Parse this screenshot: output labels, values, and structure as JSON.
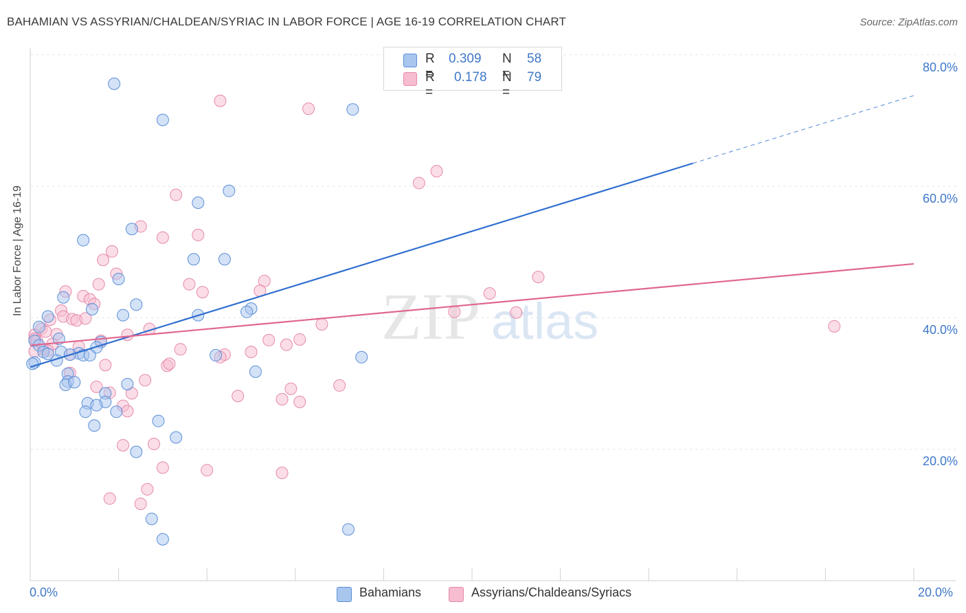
{
  "title": "BAHAMIAN VS ASSYRIAN/CHALDEAN/SYRIAC IN LABOR FORCE | AGE 16-19 CORRELATION CHART",
  "source": "Source: ZipAtlas.com",
  "watermark": {
    "zip": "ZIP",
    "atlas": "atlas"
  },
  "legend_top": {
    "r_label": "R =",
    "n_label": "N =",
    "series": [
      {
        "r": "0.309",
        "n": "58"
      },
      {
        "r": "0.178",
        "n": "79"
      }
    ]
  },
  "legend_bottom": [
    "Bahamians",
    "Assyrians/Chaldeans/Syriacs"
  ],
  "x_tick_left": "0.0%",
  "x_tick_right": "20.0%",
  "y_ticks": [
    "80.0%",
    "60.0%",
    "40.0%",
    "20.0%"
  ],
  "colors": {
    "blue_fill": "#a9c6ef",
    "blue_stroke": "#5b8fd6",
    "blue_line": "#2f6fcf",
    "pink_fill": "#f7bcd0",
    "pink_stroke": "#e58aaa",
    "pink_line": "#e0668f",
    "tick_text": "#3f78c8"
  },
  "chart_data": {
    "type": "scatter",
    "ylabel": "In Labor Force | Age 16-19",
    "xlim": [
      0,
      20
    ],
    "ylim": [
      0,
      82
    ],
    "grid": true,
    "series": [
      {
        "name": "Bahamians",
        "r": 0.309,
        "n": 58,
        "trend": {
          "x0": 0.0,
          "y0": 32.5,
          "x1": 15.0,
          "y1": 63.5,
          "dash_to_x": 20.0,
          "dash_to_y": 73.8
        },
        "points": [
          [
            1.9,
            75.6
          ],
          [
            3.0,
            70.1
          ],
          [
            7.3,
            71.7
          ],
          [
            4.5,
            59.3
          ],
          [
            3.8,
            57.5
          ],
          [
            2.3,
            53.5
          ],
          [
            1.2,
            51.8
          ],
          [
            3.7,
            48.9
          ],
          [
            4.4,
            48.9
          ],
          [
            2.0,
            45.9
          ],
          [
            0.75,
            43.1
          ],
          [
            2.4,
            42.0
          ],
          [
            1.4,
            41.3
          ],
          [
            5.0,
            41.4
          ],
          [
            2.1,
            40.4
          ],
          [
            3.8,
            40.4
          ],
          [
            4.9,
            40.9
          ],
          [
            0.4,
            40.2
          ],
          [
            0.2,
            38.6
          ],
          [
            0.65,
            36.8
          ],
          [
            0.1,
            36.5
          ],
          [
            0.2,
            35.8
          ],
          [
            1.6,
            36.3
          ],
          [
            1.5,
            35.5
          ],
          [
            0.3,
            34.8
          ],
          [
            0.4,
            34.5
          ],
          [
            0.7,
            34.8
          ],
          [
            1.1,
            34.6
          ],
          [
            1.2,
            34.3
          ],
          [
            0.9,
            34.4
          ],
          [
            1.35,
            34.3
          ],
          [
            0.6,
            33.5
          ],
          [
            0.1,
            33.2
          ],
          [
            0.05,
            33.0
          ],
          [
            4.2,
            34.3
          ],
          [
            7.5,
            34.0
          ],
          [
            5.1,
            31.8
          ],
          [
            0.85,
            31.5
          ],
          [
            0.85,
            30.3
          ],
          [
            0.8,
            29.8
          ],
          [
            1.0,
            30.2
          ],
          [
            2.2,
            29.9
          ],
          [
            1.7,
            28.5
          ],
          [
            1.3,
            27.0
          ],
          [
            1.7,
            27.2
          ],
          [
            1.5,
            26.7
          ],
          [
            1.25,
            25.7
          ],
          [
            1.95,
            25.7
          ],
          [
            2.9,
            24.3
          ],
          [
            1.45,
            23.6
          ],
          [
            3.3,
            21.8
          ],
          [
            2.4,
            19.6
          ],
          [
            2.75,
            9.4
          ],
          [
            3.0,
            6.3
          ],
          [
            7.2,
            7.8
          ]
        ]
      },
      {
        "name": "Assyrians/Chaldeans/Syriacs",
        "r": 0.178,
        "n": 79,
        "trend": {
          "x0": 0.0,
          "y0": 35.8,
          "x1": 20.0,
          "y1": 48.2
        },
        "points": [
          [
            4.3,
            73.0
          ],
          [
            6.3,
            71.8
          ],
          [
            9.2,
            62.3
          ],
          [
            8.8,
            60.5
          ],
          [
            3.3,
            58.7
          ],
          [
            2.5,
            53.9
          ],
          [
            3.0,
            52.2
          ],
          [
            3.8,
            52.6
          ],
          [
            1.85,
            50.1
          ],
          [
            1.65,
            48.8
          ],
          [
            11.5,
            46.2
          ],
          [
            1.95,
            46.7
          ],
          [
            3.6,
            45.1
          ],
          [
            1.55,
            45.1
          ],
          [
            5.3,
            45.6
          ],
          [
            5.2,
            44.1
          ],
          [
            0.8,
            44.0
          ],
          [
            3.9,
            43.9
          ],
          [
            10.4,
            43.7
          ],
          [
            1.2,
            43.3
          ],
          [
            1.35,
            42.8
          ],
          [
            1.45,
            42.1
          ],
          [
            0.7,
            41.1
          ],
          [
            9.6,
            40.9
          ],
          [
            11.0,
            40.8
          ],
          [
            0.75,
            40.2
          ],
          [
            0.95,
            39.8
          ],
          [
            1.05,
            39.6
          ],
          [
            1.25,
            39.9
          ],
          [
            0.45,
            39.7
          ],
          [
            6.6,
            39.0
          ],
          [
            18.2,
            38.7
          ],
          [
            0.25,
            38.3
          ],
          [
            0.35,
            37.9
          ],
          [
            0.1,
            37.4
          ],
          [
            0.6,
            37.5
          ],
          [
            2.2,
            37.4
          ],
          [
            2.7,
            38.3
          ],
          [
            0.1,
            36.8
          ],
          [
            0.15,
            36.5
          ],
          [
            0.5,
            36.0
          ],
          [
            0.3,
            35.2
          ],
          [
            0.1,
            34.9
          ],
          [
            0.4,
            35.0
          ],
          [
            0.9,
            34.4
          ],
          [
            1.1,
            35.6
          ],
          [
            5.4,
            36.6
          ],
          [
            5.8,
            35.9
          ],
          [
            6.1,
            36.7
          ],
          [
            1.6,
            36.5
          ],
          [
            3.4,
            35.2
          ],
          [
            4.4,
            34.4
          ],
          [
            4.3,
            34.0
          ],
          [
            5.0,
            34.8
          ],
          [
            1.7,
            32.8
          ],
          [
            3.1,
            32.7
          ],
          [
            3.15,
            33.0
          ],
          [
            0.9,
            31.6
          ],
          [
            2.6,
            30.5
          ],
          [
            1.5,
            29.5
          ],
          [
            1.8,
            28.6
          ],
          [
            2.3,
            28.5
          ],
          [
            5.9,
            29.2
          ],
          [
            7.0,
            29.7
          ],
          [
            4.7,
            28.1
          ],
          [
            5.7,
            27.6
          ],
          [
            6.1,
            27.2
          ],
          [
            2.1,
            26.6
          ],
          [
            2.2,
            25.8
          ],
          [
            2.1,
            20.6
          ],
          [
            2.8,
            20.8
          ],
          [
            3.0,
            17.2
          ],
          [
            4.0,
            16.8
          ],
          [
            5.7,
            16.4
          ],
          [
            2.65,
            13.9
          ],
          [
            1.8,
            12.5
          ],
          [
            2.5,
            11.7
          ]
        ]
      }
    ]
  }
}
